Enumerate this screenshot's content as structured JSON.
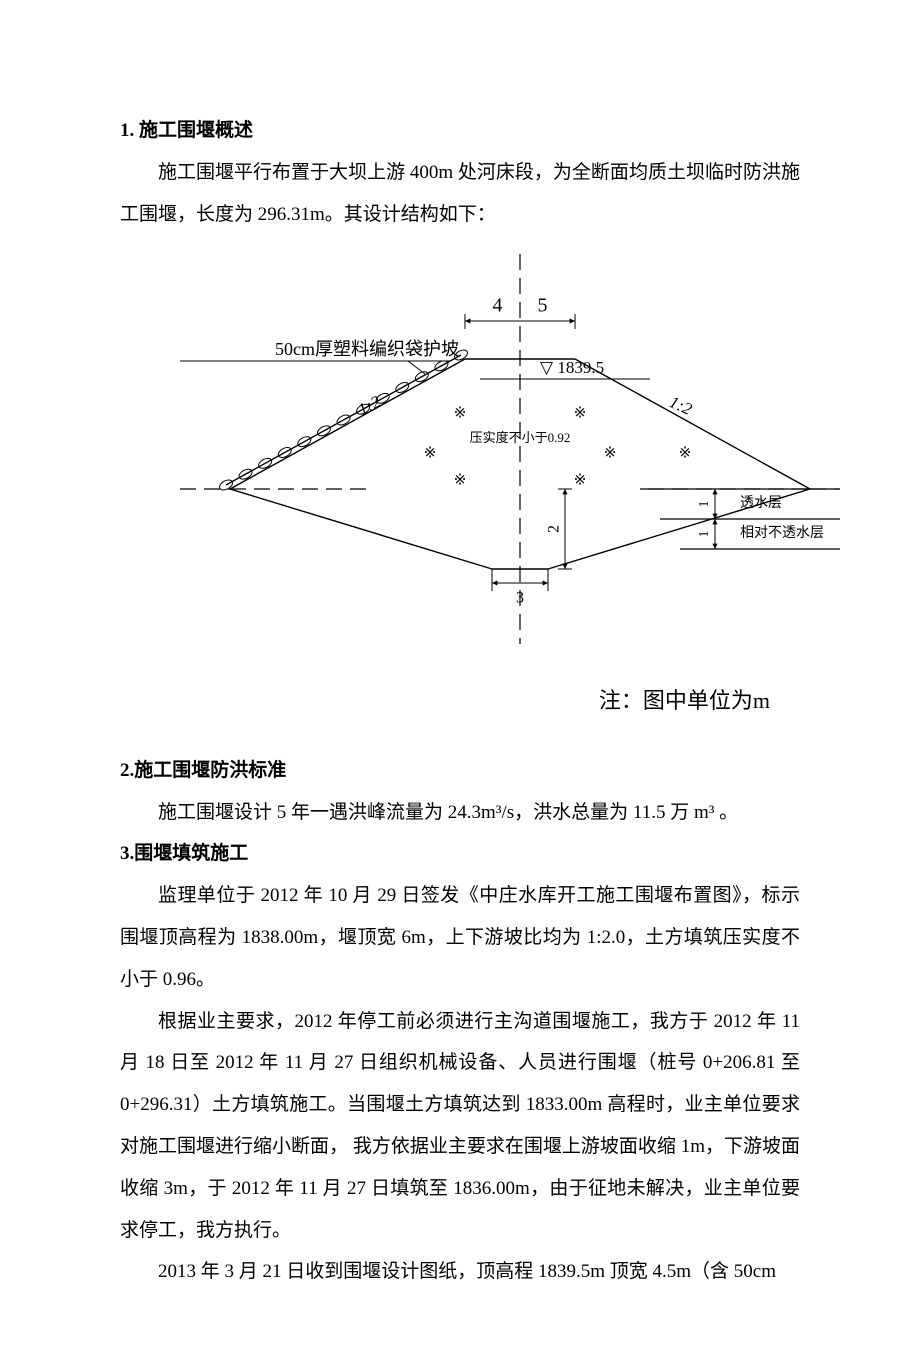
{
  "sec1": {
    "heading": "1.  施工围堰概述",
    "p1": "施工围堰平行布置于大坝上游 400m 处河床段，为全断面均质土坝临时防洪施工围堰，长度为 296.31m。其设计结构如下："
  },
  "diagram": {
    "width_label": "4.5",
    "protection_label": "50cm厚塑料编织袋护坡",
    "elevation_label": "▽ 1839.5",
    "compaction_label": "压实度不小于0.92",
    "ratio_left": "1:2",
    "ratio_right": "1:2",
    "bottom_width": "3",
    "height_upper": "2",
    "layer_h1": "1",
    "layer_h2": "1",
    "layer1_label": "透水层",
    "layer2_label": "相对不透水层",
    "cross": "※",
    "note": "注：图中单位为m",
    "colors": {
      "stroke": "#000000",
      "bg": "#ffffff"
    },
    "fontsize_label": 16,
    "fontsize_small": 13,
    "fontsize_ratio": 17
  },
  "sec2": {
    "heading": "2.施工围堰防洪标准",
    "p1": "施工围堰设计 5 年一遇洪峰流量为 24.3m³/s，洪水总量为 11.5 万 m³ 。"
  },
  "sec3": {
    "heading": "3.围堰填筑施工",
    "p1": "监理单位于 2012 年 10 月 29 日签发《中庄水库开工施工围堰布置图》，标示围堰顶高程为 1838.00m，堰顶宽 6m，上下游坡比均为 1:2.0，土方填筑压实度不小于 0.96。",
    "p2": "根据业主要求，2012 年停工前必须进行主沟道围堰施工，我方于 2012 年 11 月 18 日至 2012 年 11 月 27 日组织机械设备、人员进行围堰（桩号 0+206.81 至0+296.31）土方填筑施工。当围堰土方填筑达到 1833.00m 高程时，业主单位要求对施工围堰进行缩小断面，  我方依据业主要求在围堰上游坡面收缩 1m，下游坡面收缩 3m，于 2012 年 11 月 27 日填筑至 1836.00m，由于征地未解决，业主单位要求停工，我方执行。",
    "p3": "2013 年 3 月 21 日收到围堰设计图纸，顶高程 1839.5m 顶宽 4.5m（含 50cm"
  }
}
